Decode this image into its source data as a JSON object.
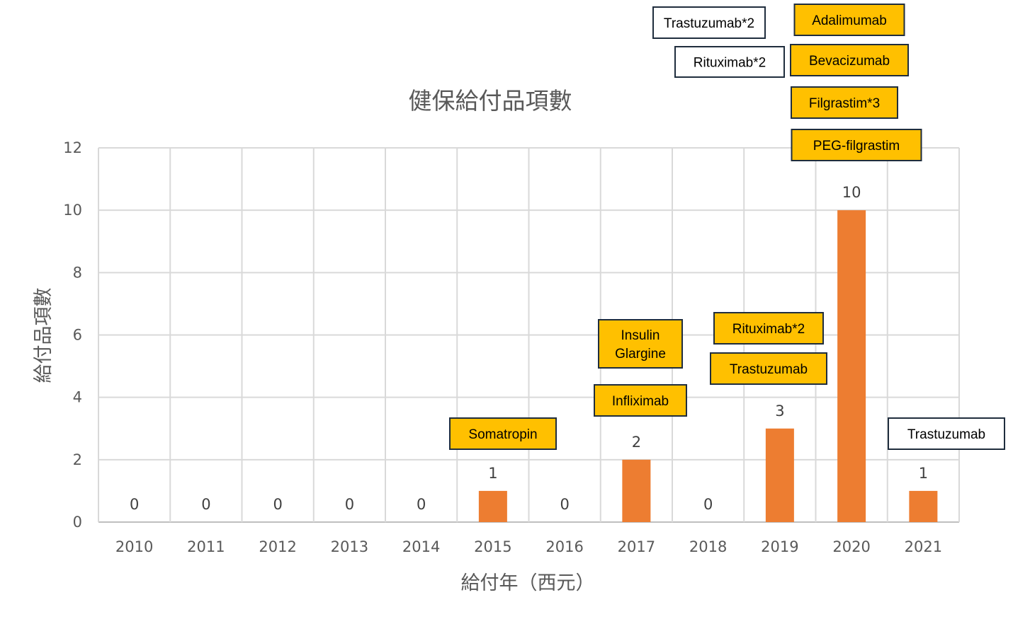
{
  "chart_data": {
    "type": "bar",
    "title": "健保給付品項數",
    "xlabel": "給付年（西元）",
    "ylabel": "給付品項數",
    "categories": [
      "2010",
      "2011",
      "2012",
      "2013",
      "2014",
      "2015",
      "2016",
      "2017",
      "2018",
      "2019",
      "2020",
      "2021"
    ],
    "values": [
      0,
      0,
      0,
      0,
      0,
      1,
      0,
      2,
      0,
      3,
      10,
      1
    ],
    "ylim": [
      0,
      12
    ],
    "yticks": [
      0,
      2,
      4,
      6,
      8,
      10,
      12
    ],
    "grid": true,
    "bar_color": "#ED7D31",
    "annotations": [
      {
        "year": "2015",
        "lines": [
          "Somatropin"
        ],
        "style": "yellow"
      },
      {
        "year": "2017",
        "lines": [
          "Infliximab"
        ],
        "style": "yellow"
      },
      {
        "year": "2017",
        "lines": [
          "Insulin",
          "Glargine"
        ],
        "style": "yellow"
      },
      {
        "year": "2019",
        "lines": [
          "Trastuzumab"
        ],
        "style": "yellow"
      },
      {
        "year": "2019",
        "lines": [
          "Rituximab*2"
        ],
        "style": "yellow"
      },
      {
        "year": "2020",
        "lines": [
          "PEG-filgrastim"
        ],
        "style": "yellow"
      },
      {
        "year": "2020",
        "lines": [
          "Filgrastim*3"
        ],
        "style": "yellow"
      },
      {
        "year": "2020",
        "lines": [
          "Bevacizumab"
        ],
        "style": "yellow"
      },
      {
        "year": "2020",
        "lines": [
          "Adalimumab"
        ],
        "style": "yellow"
      },
      {
        "year": "2020",
        "lines": [
          "Rituximab*2"
        ],
        "style": "white"
      },
      {
        "year": "2020",
        "lines": [
          "Trastuzumab*2"
        ],
        "style": "white"
      },
      {
        "year": "2021",
        "lines": [
          "Trastuzumab"
        ],
        "style": "white"
      }
    ],
    "annotation_colors": {
      "yellow": "#FFC000",
      "white": "#FFFFFF",
      "border": "#1F2D3D"
    }
  }
}
